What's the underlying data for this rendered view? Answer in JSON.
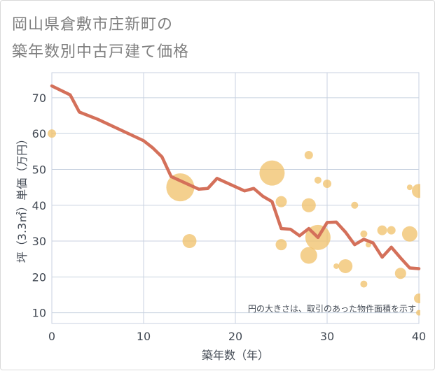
{
  "title_line1": "岡山県倉敷市庄新町の",
  "title_line2": "築年数別中古戸建て価格",
  "chart_data": {
    "type": "scatter",
    "title": "岡山県倉敷市庄新町の築年数別中古戸建て価格",
    "xlabel": "築年数（年）",
    "ylabel": "坪（3.3㎡）単価（万円）",
    "xlim": [
      0,
      40
    ],
    "ylim": [
      7,
      77
    ],
    "xticks": [
      0,
      10,
      20,
      30,
      40
    ],
    "yticks": [
      10,
      20,
      30,
      40,
      50,
      60,
      70
    ],
    "grid": true,
    "note": "円の大きさは、取引のあった物件面積を示す",
    "colors": {
      "bubble": "#f0c068",
      "line": "#d4705a",
      "grid": "#c8d2e0"
    },
    "bubbles": [
      {
        "x": 0,
        "y": 60,
        "size": 3
      },
      {
        "x": 14,
        "y": 45,
        "size": 10
      },
      {
        "x": 15,
        "y": 30,
        "size": 5
      },
      {
        "x": 24,
        "y": 49,
        "size": 9
      },
      {
        "x": 25,
        "y": 41,
        "size": 4
      },
      {
        "x": 25,
        "y": 29,
        "size": 4
      },
      {
        "x": 28,
        "y": 54,
        "size": 3
      },
      {
        "x": 28,
        "y": 40,
        "size": 5
      },
      {
        "x": 28,
        "y": 26,
        "size": 6
      },
      {
        "x": 29,
        "y": 47,
        "size": 2.5
      },
      {
        "x": 29,
        "y": 31,
        "size": 9
      },
      {
        "x": 30,
        "y": 46,
        "size": 3
      },
      {
        "x": 31,
        "y": 23,
        "size": 2
      },
      {
        "x": 32,
        "y": 23,
        "size": 5
      },
      {
        "x": 33,
        "y": 40,
        "size": 2.5
      },
      {
        "x": 34,
        "y": 32,
        "size": 2.5
      },
      {
        "x": 34,
        "y": 18,
        "size": 2.5
      },
      {
        "x": 34.5,
        "y": 29,
        "size": 2
      },
      {
        "x": 36,
        "y": 33,
        "size": 3.5
      },
      {
        "x": 37,
        "y": 33,
        "size": 3
      },
      {
        "x": 38,
        "y": 21,
        "size": 4
      },
      {
        "x": 39,
        "y": 45,
        "size": 2
      },
      {
        "x": 39,
        "y": 32,
        "size": 5.5
      },
      {
        "x": 40,
        "y": 44,
        "size": 5
      },
      {
        "x": 40,
        "y": 14,
        "size": 3.5
      },
      {
        "x": 40,
        "y": 10,
        "size": 2
      }
    ],
    "trend": [
      {
        "x": 0,
        "y": 73.3
      },
      {
        "x": 2,
        "y": 70.8
      },
      {
        "x": 3,
        "y": 66
      },
      {
        "x": 5,
        "y": 64
      },
      {
        "x": 10,
        "y": 58
      },
      {
        "x": 11,
        "y": 56
      },
      {
        "x": 12,
        "y": 53.5
      },
      {
        "x": 13,
        "y": 48
      },
      {
        "x": 16,
        "y": 44.5
      },
      {
        "x": 17,
        "y": 44.7
      },
      {
        "x": 18,
        "y": 47.5
      },
      {
        "x": 21,
        "y": 44
      },
      {
        "x": 22,
        "y": 44.7
      },
      {
        "x": 23,
        "y": 42.5
      },
      {
        "x": 24,
        "y": 41
      },
      {
        "x": 25,
        "y": 33.5
      },
      {
        "x": 26,
        "y": 33.3
      },
      {
        "x": 27,
        "y": 31.5
      },
      {
        "x": 28,
        "y": 33.5
      },
      {
        "x": 29,
        "y": 31
      },
      {
        "x": 30,
        "y": 35.2
      },
      {
        "x": 31,
        "y": 35.3
      },
      {
        "x": 32,
        "y": 32.5
      },
      {
        "x": 33,
        "y": 29
      },
      {
        "x": 34,
        "y": 30.5
      },
      {
        "x": 35,
        "y": 29.5
      },
      {
        "x": 36,
        "y": 25.5
      },
      {
        "x": 37,
        "y": 28.3
      },
      {
        "x": 38,
        "y": 25.3
      },
      {
        "x": 39,
        "y": 22.5
      },
      {
        "x": 40,
        "y": 22.3
      }
    ]
  }
}
